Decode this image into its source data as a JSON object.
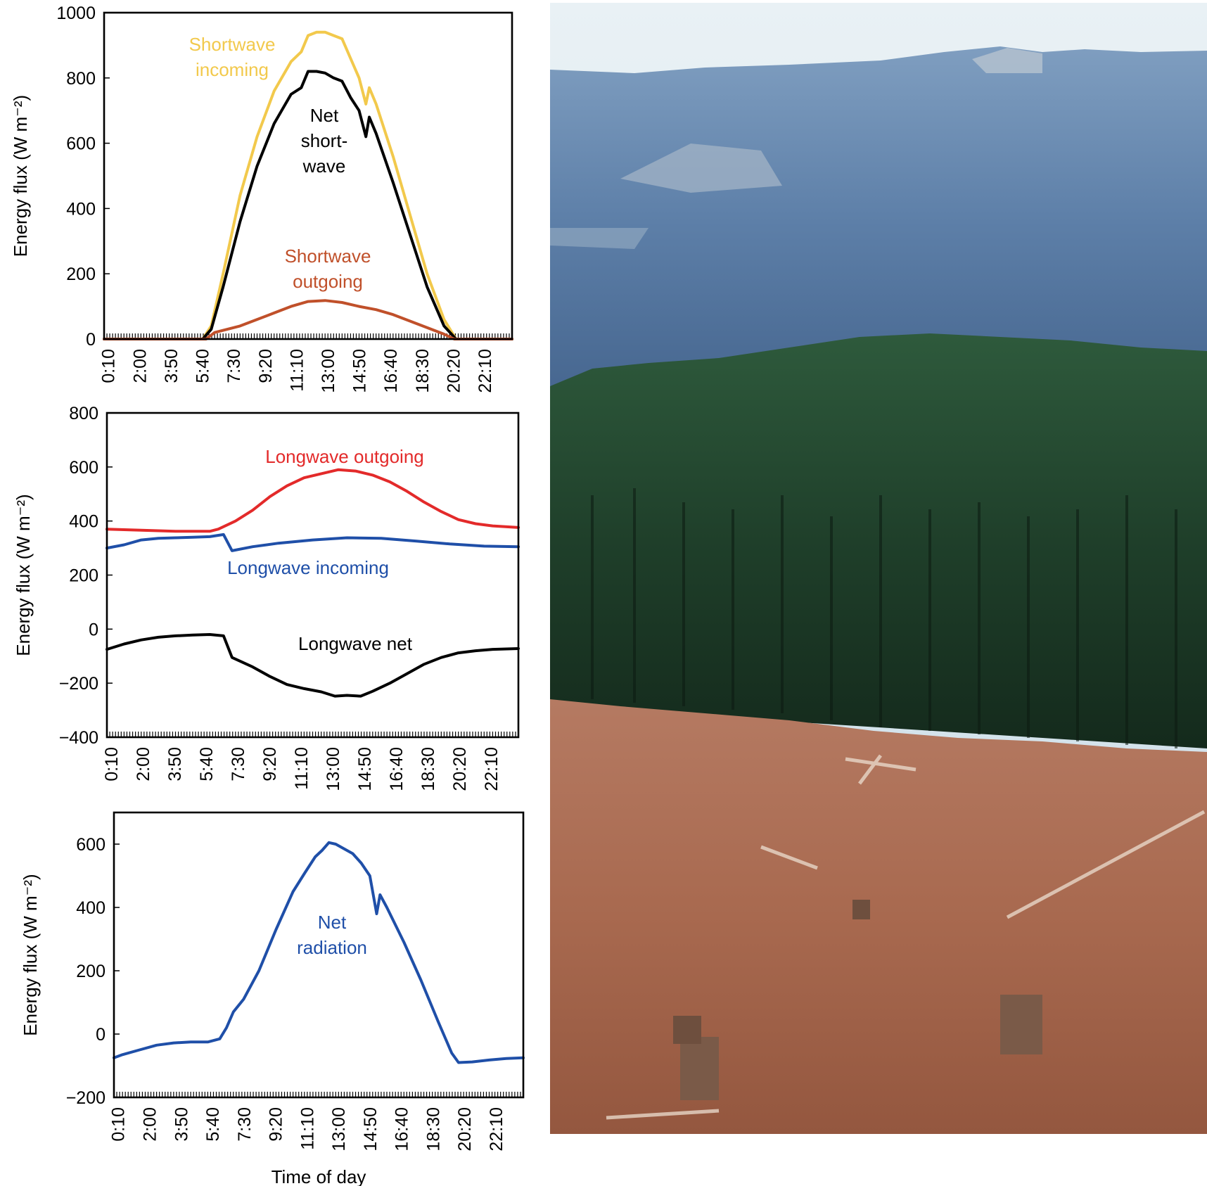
{
  "colors": {
    "shortwave_incoming": "#f2c94c",
    "net_shortwave": "#000000",
    "shortwave_outgoing": "#c0502a",
    "longwave_outgoing": "#e32a2a",
    "longwave_incoming": "#1f4fa8",
    "longwave_net": "#000000",
    "net_radiation": "#1f4fa8"
  },
  "photo": {
    "description_icon": "clearcut-forest-photo-icon"
  },
  "chart_data": [
    {
      "type": "line",
      "ylabel": "Energy flux (W m⁻²)",
      "xlabel": "",
      "ylim": [
        0,
        1000
      ],
      "yticks": [
        0,
        200,
        400,
        600,
        800,
        1000
      ],
      "xlim": [
        0,
        24
      ],
      "xtick_labels": [
        "0:10",
        "2:00",
        "3:50",
        "5:40",
        "7:30",
        "9:20",
        "11:10",
        "13:00",
        "14:50",
        "16:40",
        "18:30",
        "20:20",
        "22:10"
      ],
      "series": [
        {
          "name": "Shortwave incoming",
          "label_lines": [
            "Shortwave",
            "incoming"
          ],
          "color_key": "shortwave_incoming",
          "x": [
            0,
            5.8,
            6.3,
            7.0,
            8.0,
            9.0,
            10.0,
            11.0,
            11.6,
            12.0,
            12.5,
            13.0,
            13.5,
            14.0,
            14.5,
            15.0,
            15.4,
            15.6,
            16.0,
            17.0,
            18.0,
            19.0,
            20.0,
            20.7,
            24
          ],
          "y": [
            0,
            0,
            40,
            200,
            440,
            620,
            760,
            850,
            880,
            930,
            940,
            940,
            930,
            920,
            860,
            800,
            720,
            770,
            720,
            560,
            380,
            200,
            60,
            0,
            0
          ]
        },
        {
          "name": "Net short-wave",
          "label_lines": [
            "Net",
            "short-",
            "wave"
          ],
          "color_key": "net_shortwave",
          "x": [
            0,
            5.8,
            6.3,
            7.0,
            8.0,
            9.0,
            10.0,
            11.0,
            11.6,
            12.0,
            12.5,
            13.0,
            13.5,
            14.0,
            14.5,
            15.0,
            15.4,
            15.6,
            16.0,
            17.0,
            18.0,
            19.0,
            20.0,
            20.7,
            24
          ],
          "y": [
            0,
            0,
            30,
            160,
            360,
            530,
            660,
            750,
            770,
            820,
            820,
            815,
            800,
            790,
            740,
            700,
            620,
            680,
            630,
            480,
            320,
            160,
            40,
            0,
            0
          ]
        },
        {
          "name": "Shortwave outgoing",
          "label_lines": [
            "Shortwave",
            "outgoing"
          ],
          "color_key": "shortwave_outgoing",
          "x": [
            0,
            6.0,
            6.5,
            8.0,
            10.0,
            11.0,
            12.0,
            13.0,
            14.0,
            15.0,
            16.0,
            17.0,
            18.0,
            19.0,
            20.0,
            20.6,
            24
          ],
          "y": [
            0,
            0,
            20,
            40,
            80,
            100,
            115,
            118,
            112,
            100,
            90,
            75,
            55,
            35,
            15,
            0,
            0
          ]
        }
      ]
    },
    {
      "type": "line",
      "ylabel": "Energy flux (W m⁻²)",
      "xlabel": "",
      "ylim": [
        -400,
        800
      ],
      "yticks": [
        -400,
        -200,
        0,
        200,
        400,
        600,
        800
      ],
      "xlim": [
        0,
        24
      ],
      "xtick_labels": [
        "0:10",
        "2:00",
        "3:50",
        "5:40",
        "7:30",
        "9:20",
        "11:10",
        "13:00",
        "14:50",
        "16:40",
        "18:30",
        "20:20",
        "22:10"
      ],
      "series": [
        {
          "name": "Longwave outgoing",
          "label_lines": [
            "Longwave outgoing"
          ],
          "color_key": "longwave_outgoing",
          "x": [
            0,
            1,
            2,
            3,
            4,
            5,
            6,
            6.5,
            7.5,
            8.5,
            9.5,
            10.5,
            11.5,
            12.5,
            13.5,
            14.5,
            15.5,
            16.5,
            17.5,
            18.5,
            19.5,
            20.5,
            21.5,
            22.5,
            23.5,
            24
          ],
          "y": [
            370,
            368,
            366,
            364,
            362,
            362,
            362,
            370,
            400,
            440,
            490,
            530,
            560,
            575,
            590,
            585,
            570,
            545,
            510,
            470,
            435,
            405,
            390,
            382,
            378,
            376
          ]
        },
        {
          "name": "Longwave incoming",
          "label_lines": [
            "Longwave incoming"
          ],
          "color_key": "longwave_incoming",
          "x": [
            0,
            1,
            2,
            3,
            4,
            5,
            6,
            6.8,
            7.3,
            8.5,
            10,
            12,
            14,
            16,
            18,
            20,
            22,
            24
          ],
          "y": [
            300,
            312,
            330,
            336,
            338,
            340,
            342,
            350,
            290,
            305,
            318,
            330,
            338,
            336,
            326,
            315,
            307,
            305
          ]
        },
        {
          "name": "Longwave net",
          "label_lines": [
            "Longwave net"
          ],
          "color_key": "longwave_net",
          "x": [
            0,
            1,
            2,
            3,
            4,
            5,
            6,
            6.8,
            7.3,
            8.5,
            9.5,
            10.5,
            11.5,
            12.5,
            13.3,
            14.0,
            14.8,
            15.5,
            16.5,
            17.5,
            18.5,
            19.5,
            20.5,
            21.5,
            22.5,
            24
          ],
          "y": [
            -75,
            -55,
            -40,
            -30,
            -25,
            -22,
            -20,
            -25,
            -105,
            -140,
            -175,
            -205,
            -220,
            -232,
            -248,
            -245,
            -248,
            -230,
            -200,
            -165,
            -130,
            -105,
            -88,
            -80,
            -75,
            -72
          ]
        }
      ]
    },
    {
      "type": "line",
      "ylabel": "Energy flux (W m⁻²)",
      "xlabel": "Time of day",
      "ylim": [
        -200,
        700
      ],
      "yticks": [
        -200,
        0,
        200,
        400,
        600
      ],
      "xlim": [
        0,
        24
      ],
      "xtick_labels": [
        "0:10",
        "2:00",
        "3:50",
        "5:40",
        "7:30",
        "9:20",
        "11:10",
        "13:00",
        "14:50",
        "16:40",
        "18:30",
        "20:20",
        "22:10"
      ],
      "series": [
        {
          "name": "Net radiation",
          "label_lines": [
            "Net",
            "radiation"
          ],
          "color_key": "net_radiation",
          "x": [
            0,
            0.5,
            1.5,
            2.5,
            3.5,
            4.5,
            5.5,
            6.2,
            6.6,
            7.0,
            7.6,
            8.5,
            9.5,
            10.5,
            11.2,
            11.8,
            12.2,
            12.6,
            13.0,
            13.5,
            14.0,
            14.5,
            15.0,
            15.4,
            15.6,
            16.0,
            17.0,
            18.0,
            19.0,
            19.8,
            20.2,
            21.0,
            22.0,
            23.0,
            24
          ],
          "y": [
            -75,
            -65,
            -50,
            -35,
            -28,
            -25,
            -25,
            -15,
            20,
            70,
            110,
            200,
            330,
            450,
            510,
            560,
            580,
            605,
            600,
            585,
            570,
            540,
            500,
            380,
            440,
            400,
            290,
            170,
            40,
            -60,
            -90,
            -88,
            -82,
            -77,
            -75
          ]
        }
      ]
    }
  ]
}
